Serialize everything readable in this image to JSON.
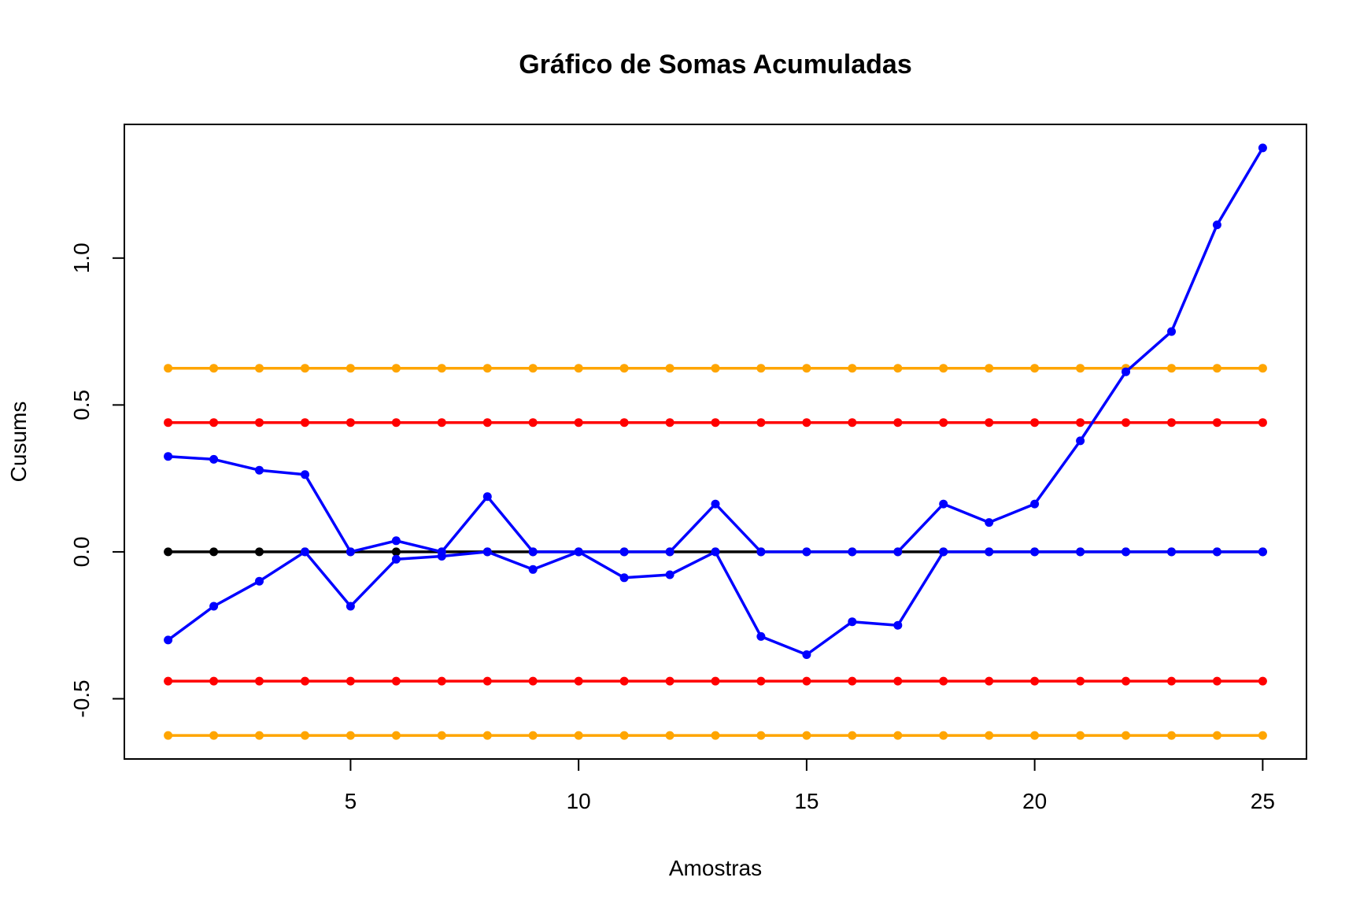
{
  "colors": {
    "upper_cusum": "#0000ff",
    "lower_cusum": "#0000ff",
    "center": "#000000",
    "decision_interval": "#ff0000",
    "warning_limit": "#ffa500"
  },
  "chart_data": {
    "type": "line",
    "title": "Gráfico de Somas Acumuladas",
    "xlabel": "Amostras",
    "ylabel": "Cusums",
    "xlim": [
      0.04,
      25.96
    ],
    "ylim": [
      -0.705,
      1.455
    ],
    "x_ticks": [
      5,
      10,
      15,
      20,
      25
    ],
    "x_tick_labels": [
      "5",
      "10",
      "15",
      "20",
      "25"
    ],
    "y_ticks": [
      -0.5,
      0.0,
      0.5,
      1.0
    ],
    "y_tick_labels": [
      "-0.5",
      "0.0",
      "0.5",
      "1.0"
    ],
    "grid": false,
    "legend": "none",
    "x": [
      1,
      2,
      3,
      4,
      5,
      6,
      7,
      8,
      9,
      10,
      11,
      12,
      13,
      14,
      15,
      16,
      17,
      18,
      19,
      20,
      21,
      22,
      23,
      24,
      25
    ],
    "series": [
      {
        "color_key": "warning_limit",
        "values": [
          0.625,
          0.625,
          0.625,
          0.625,
          0.625,
          0.625,
          0.625,
          0.625,
          0.625,
          0.625,
          0.625,
          0.625,
          0.625,
          0.625,
          0.625,
          0.625,
          0.625,
          0.625,
          0.625,
          0.625,
          0.625,
          0.625,
          0.625,
          0.625,
          0.625
        ]
      },
      {
        "color_key": "decision_interval",
        "values": [
          0.44,
          0.44,
          0.44,
          0.44,
          0.44,
          0.44,
          0.44,
          0.44,
          0.44,
          0.44,
          0.44,
          0.44,
          0.44,
          0.44,
          0.44,
          0.44,
          0.44,
          0.44,
          0.44,
          0.44,
          0.44,
          0.44,
          0.44,
          0.44,
          0.44
        ]
      },
      {
        "color_key": "decision_interval",
        "values": [
          -0.44,
          -0.44,
          -0.44,
          -0.44,
          -0.44,
          -0.44,
          -0.44,
          -0.44,
          -0.44,
          -0.44,
          -0.44,
          -0.44,
          -0.44,
          -0.44,
          -0.44,
          -0.44,
          -0.44,
          -0.44,
          -0.44,
          -0.44,
          -0.44,
          -0.44,
          -0.44,
          -0.44,
          -0.44
        ]
      },
      {
        "color_key": "warning_limit",
        "values": [
          -0.625,
          -0.625,
          -0.625,
          -0.625,
          -0.625,
          -0.625,
          -0.625,
          -0.625,
          -0.625,
          -0.625,
          -0.625,
          -0.625,
          -0.625,
          -0.625,
          -0.625,
          -0.625,
          -0.625,
          -0.625,
          -0.625,
          -0.625,
          -0.625,
          -0.625,
          -0.625,
          -0.625,
          -0.625
        ]
      },
      {
        "color_key": "center",
        "values": [
          0,
          0,
          0,
          0,
          0,
          0,
          0,
          0,
          0,
          0,
          0,
          0,
          0,
          0,
          0,
          0,
          0,
          0,
          0,
          0,
          0,
          0,
          0,
          0,
          0
        ]
      },
      {
        "color_key": "upper_cusum",
        "values": [
          0.325,
          0.315,
          0.278,
          0.263,
          0.0,
          0.038,
          0.0,
          0.188,
          0.0,
          0.0,
          0.0,
          0.0,
          0.163,
          0.0,
          0.0,
          0.0,
          0.0,
          0.163,
          0.1,
          0.163,
          0.378,
          0.613,
          0.75,
          1.113,
          1.375
        ]
      },
      {
        "color_key": "lower_cusum",
        "values": [
          -0.3,
          -0.185,
          -0.1,
          0.0,
          -0.185,
          -0.025,
          -0.015,
          0.0,
          -0.06,
          0.0,
          -0.088,
          -0.078,
          0.0,
          -0.288,
          -0.35,
          -0.238,
          -0.25,
          0.0,
          0.0,
          0.0,
          0.0,
          0.0,
          0.0,
          0.0,
          0.0
        ]
      }
    ]
  }
}
